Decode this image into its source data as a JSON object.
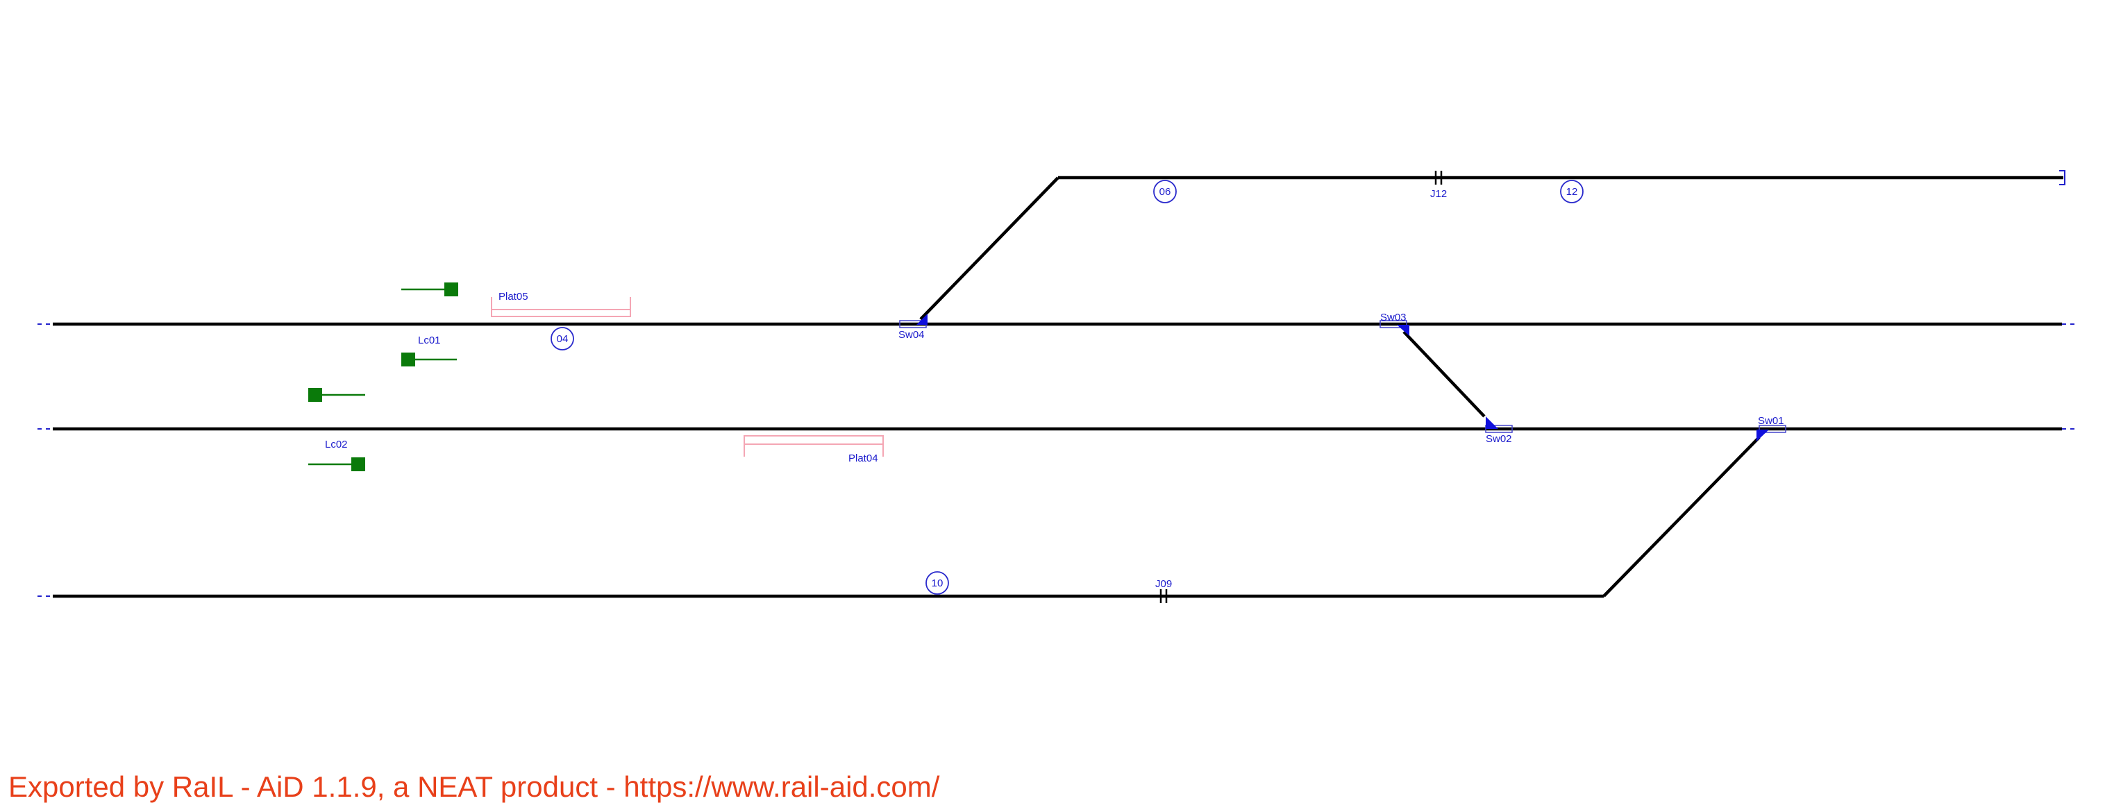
{
  "labels": {
    "plat05": "Plat05",
    "plat04": "Plat04",
    "lc01": "Lc01",
    "lc02": "Lc02",
    "sw01": "Sw01",
    "sw02": "Sw02",
    "sw03": "Sw03",
    "sw04": "Sw04",
    "j12": "J12",
    "j09": "J09"
  },
  "sections": {
    "s04": "04",
    "s06": "06",
    "s10": "10",
    "s12": "12"
  },
  "colors": {
    "track": "#000000",
    "label": "#1a1acc",
    "platform": "#f4a6b4",
    "signal": "#0a7a0a",
    "footer": "#e8401a"
  },
  "footer": {
    "text": "Exported by RaIL - AiD  1.1.9, a NEAT product - https://www.rail-aid.com/"
  }
}
